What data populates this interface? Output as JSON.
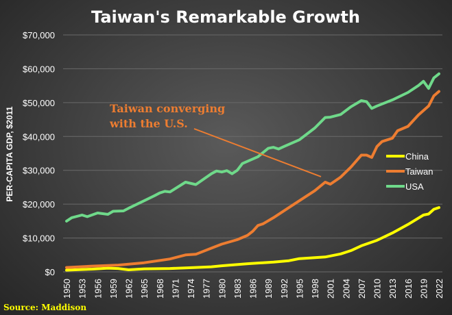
{
  "chart_data": {
    "type": "line",
    "title": "Taiwan's Remarkable Growth",
    "xlabel": "",
    "ylabel": "PER-CAPITA GDP, $2011",
    "xlim": [
      1950,
      2022
    ],
    "ylim": [
      0,
      70000
    ],
    "x_ticks": [
      "1950",
      "1953",
      "1956",
      "1959",
      "1962",
      "1965",
      "1968",
      "1971",
      "1974",
      "1977",
      "1980",
      "1983",
      "1986",
      "1989",
      "1992",
      "1995",
      "1998",
      "2001",
      "2004",
      "2007",
      "2010",
      "2013",
      "2016",
      "2019",
      "2022"
    ],
    "y_ticks": [
      "$0",
      "$10,000",
      "$20,000",
      "$30,000",
      "$40,000",
      "$50,000",
      "$60,000",
      "$70,000"
    ],
    "grid": "horizontal",
    "legend": "right",
    "annotation": {
      "line1": "Taiwan converging",
      "line2": "with the U.S."
    },
    "source": "Source: Maddison",
    "series": [
      {
        "name": "China",
        "color": "#ffff00",
        "x": [
          1950,
          1955,
          1958,
          1960,
          1962,
          1965,
          1970,
          1975,
          1978,
          1980,
          1985,
          1990,
          1993,
          1995,
          2000,
          2003,
          2005,
          2007,
          2010,
          2013,
          2016,
          2019,
          2020,
          2021,
          2022
        ],
        "y": [
          500,
          800,
          1100,
          1000,
          600,
          900,
          1000,
          1300,
          1500,
          1800,
          2400,
          2900,
          3300,
          3900,
          4400,
          5300,
          6300,
          7700,
          9300,
          11500,
          14000,
          16800,
          17100,
          18500,
          19000
        ]
      },
      {
        "name": "Taiwan",
        "color": "#ed7d31",
        "x": [
          1950,
          1955,
          1960,
          1965,
          1970,
          1973,
          1975,
          1978,
          1980,
          1983,
          1985,
          1986,
          1987,
          1988,
          1990,
          1993,
          1995,
          1998,
          2000,
          2001,
          2003,
          2005,
          2007,
          2008,
          2009,
          2010,
          2011,
          2013,
          2014,
          2016,
          2018,
          2020,
          2021,
          2022
        ],
        "y": [
          1300,
          1700,
          2000,
          2700,
          3800,
          5000,
          5200,
          7000,
          8200,
          9500,
          10800,
          12000,
          13700,
          14200,
          16000,
          19000,
          21000,
          24000,
          26500,
          25900,
          28000,
          31000,
          34500,
          34500,
          33800,
          37000,
          38500,
          39500,
          41700,
          43000,
          46300,
          49000,
          52000,
          53300
        ]
      },
      {
        "name": "USA",
        "color": "#6fd98a",
        "x": [
          1950,
          1951,
          1953,
          1954,
          1956,
          1958,
          1959,
          1961,
          1962,
          1965,
          1967,
          1968,
          1969,
          1970,
          1973,
          1975,
          1978,
          1979,
          1980,
          1981,
          1982,
          1983,
          1984,
          1987,
          1989,
          1990,
          1991,
          1992,
          1995,
          1998,
          2000,
          2001,
          2003,
          2005,
          2007,
          2008,
          2009,
          2010,
          2013,
          2016,
          2018,
          2019,
          2020,
          2021,
          2022
        ],
        "y": [
          15000,
          16000,
          16800,
          16300,
          17400,
          17000,
          17900,
          18000,
          18800,
          21000,
          22500,
          23300,
          23800,
          23600,
          26500,
          25800,
          29000,
          29800,
          29500,
          29900,
          29000,
          30000,
          32000,
          34000,
          36500,
          36800,
          36300,
          37000,
          39000,
          42500,
          45600,
          45700,
          46500,
          48800,
          50600,
          50300,
          48300,
          49000,
          50800,
          53000,
          55000,
          56300,
          54200,
          57300,
          58500
        ]
      }
    ]
  }
}
